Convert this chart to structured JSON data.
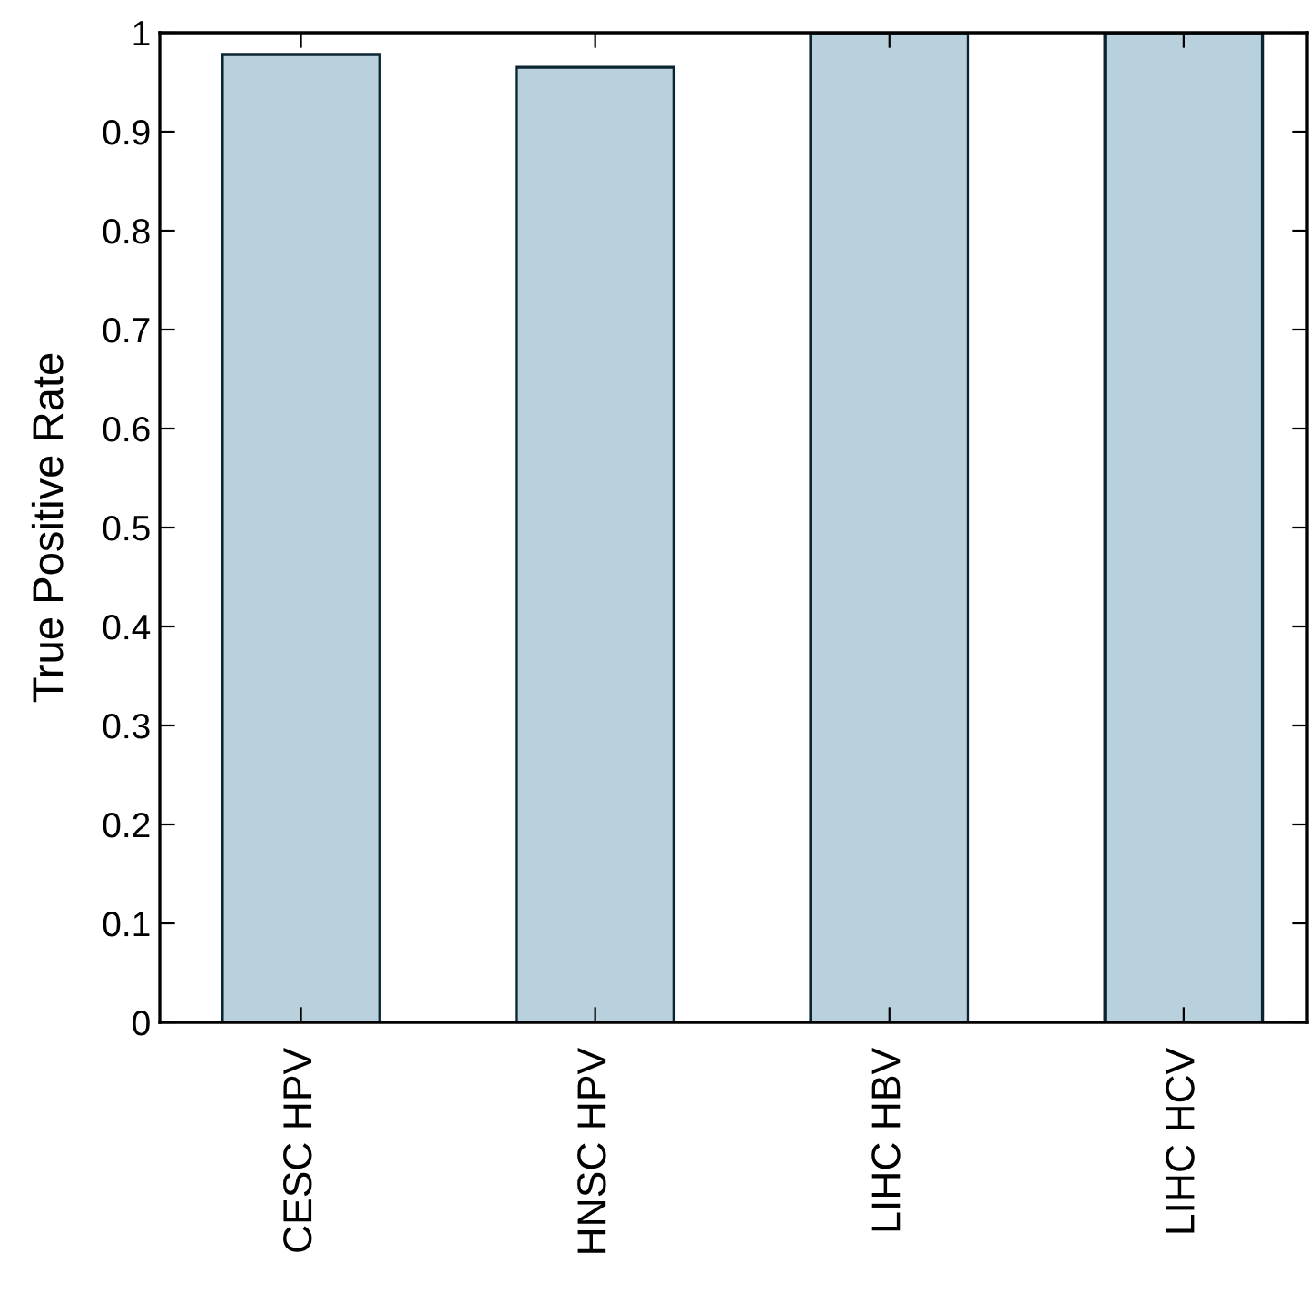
{
  "chart_data": {
    "type": "bar",
    "ylabel": "True Positive Rate",
    "categories": [
      "CESC HPV",
      "HNSC HPV",
      "LIHC HBV",
      "LIHC HCV"
    ],
    "values": [
      0.978,
      0.965,
      1,
      1
    ],
    "color": "#b8d1dc",
    "ylim": [
      0,
      1
    ],
    "yticks": [
      0,
      0.1,
      0.2,
      0.3,
      0.4,
      0.5,
      0.6,
      0.7,
      0.8,
      0.9,
      1
    ],
    "grid": false
  }
}
